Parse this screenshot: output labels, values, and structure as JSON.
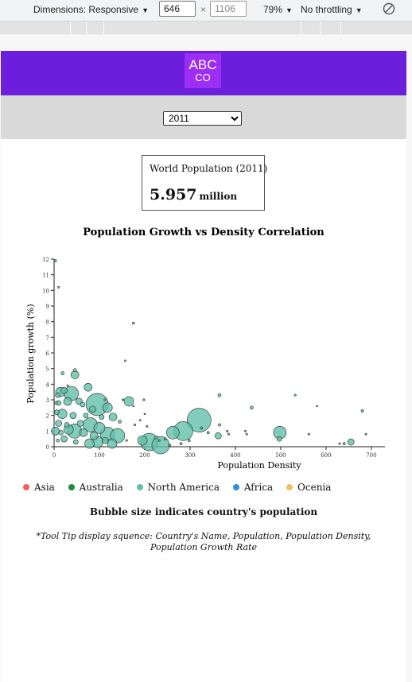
{
  "devtools": {
    "dimensions_label": "Dimensions: Responsive",
    "width_value": "646",
    "height_value": "1106",
    "times": "×",
    "zoom": "79%",
    "throttling": "No throttling",
    "caret": "▼"
  },
  "header": {
    "logo_top": "ABC",
    "logo_bottom": "CO"
  },
  "year_select": {
    "selected": "2011"
  },
  "population_box": {
    "label": "World Population (2011)",
    "value": "5.957",
    "unit": "million"
  },
  "chart_data": {
    "type": "scatter",
    "title": "Population Growth vs Density Correlation",
    "xlabel": "Population Density",
    "ylabel": "Population growth (%)",
    "xlim": [
      0,
      730
    ],
    "ylim": [
      0,
      12
    ],
    "x_ticks": [
      0,
      100,
      200,
      300,
      400,
      500,
      600,
      700
    ],
    "y_ticks": [
      0,
      1,
      2,
      3,
      4,
      5,
      6,
      7,
      8,
      9,
      10,
      11,
      12
    ],
    "grid": false,
    "legend_position": "bottom-left",
    "colors": {
      "Asia": "#f06262",
      "Australia": "#1f8b3c",
      "North America": "#62bfa9",
      "Africa": "#2a8fe0",
      "Ocenia": "#f2c063"
    },
    "points": [
      {
        "x": 3,
        "y": 11.9,
        "r": 1.4
      },
      {
        "x": 10,
        "y": 10.2,
        "r": 1.2
      },
      {
        "x": 175,
        "y": 7.9,
        "r": 1.4
      },
      {
        "x": 157,
        "y": 5.5,
        "r": 1.0
      },
      {
        "x": 46,
        "y": 4.9,
        "r": 2.0
      },
      {
        "x": 46,
        "y": 4.6,
        "r": 5.0
      },
      {
        "x": 19,
        "y": 4.7,
        "r": 2.0
      },
      {
        "x": 30,
        "y": 3.9,
        "r": 1.2
      },
      {
        "x": 22,
        "y": 3.6,
        "r": 4.0
      },
      {
        "x": 14,
        "y": 3.5,
        "r": 6.0
      },
      {
        "x": 8,
        "y": 3.3,
        "r": 3.0
      },
      {
        "x": 38,
        "y": 3.4,
        "r": 9.0
      },
      {
        "x": 75,
        "y": 3.8,
        "r": 5.0
      },
      {
        "x": 4,
        "y": 2.8,
        "r": 2.0
      },
      {
        "x": 10,
        "y": 2.8,
        "r": 3.0
      },
      {
        "x": 30,
        "y": 2.9,
        "r": 5.0
      },
      {
        "x": 55,
        "y": 2.9,
        "r": 4.0
      },
      {
        "x": 63,
        "y": 2.7,
        "r": 3.0
      },
      {
        "x": 95,
        "y": 2.7,
        "r": 14.0
      },
      {
        "x": 118,
        "y": 2.5,
        "r": 6.0
      },
      {
        "x": 85,
        "y": 2.4,
        "r": 4.0
      },
      {
        "x": 6,
        "y": 2.2,
        "r": 3.0
      },
      {
        "x": 18,
        "y": 2.1,
        "r": 6.0
      },
      {
        "x": 42,
        "y": 2.0,
        "r": 4.0
      },
      {
        "x": 70,
        "y": 2.0,
        "r": 3.0
      },
      {
        "x": 105,
        "y": 1.9,
        "r": 3.0
      },
      {
        "x": 130,
        "y": 1.9,
        "r": 5.0
      },
      {
        "x": 165,
        "y": 2.9,
        "r": 6.0
      },
      {
        "x": 152,
        "y": 3.0,
        "r": 1.2
      },
      {
        "x": 198,
        "y": 3.0,
        "r": 1.2
      },
      {
        "x": 175,
        "y": 2.6,
        "r": 1.0
      },
      {
        "x": 200,
        "y": 2.1,
        "r": 1.0
      },
      {
        "x": 190,
        "y": 1.7,
        "r": 1.0
      },
      {
        "x": 145,
        "y": 1.6,
        "r": 2.0
      },
      {
        "x": 10,
        "y": 1.5,
        "r": 4.0
      },
      {
        "x": 28,
        "y": 1.4,
        "r": 3.0
      },
      {
        "x": 58,
        "y": 1.5,
        "r": 4.0
      },
      {
        "x": 80,
        "y": 1.4,
        "r": 9.0
      },
      {
        "x": 100,
        "y": 1.2,
        "r": 7.0
      },
      {
        "x": 3,
        "y": 1.0,
        "r": 5.0
      },
      {
        "x": 15,
        "y": 0.9,
        "r": 3.0
      },
      {
        "x": 32,
        "y": 1.1,
        "r": 6.0
      },
      {
        "x": 45,
        "y": 1.0,
        "r": 9.0
      },
      {
        "x": 65,
        "y": 0.9,
        "r": 5.0
      },
      {
        "x": 88,
        "y": 0.7,
        "r": 5.0
      },
      {
        "x": 118,
        "y": 0.8,
        "r": 9.0
      },
      {
        "x": 140,
        "y": 0.7,
        "r": 9.0
      },
      {
        "x": 8,
        "y": 0.4,
        "r": 2.0
      },
      {
        "x": 22,
        "y": 0.5,
        "r": 4.0
      },
      {
        "x": 48,
        "y": 0.3,
        "r": 3.0
      },
      {
        "x": 78,
        "y": 0.2,
        "r": 6.0
      },
      {
        "x": 96,
        "y": 0.3,
        "r": 7.0
      },
      {
        "x": 113,
        "y": 0.4,
        "r": 4.0
      },
      {
        "x": 128,
        "y": 0.2,
        "r": 6.0
      },
      {
        "x": 195,
        "y": 0.4,
        "r": 6.0
      },
      {
        "x": 210,
        "y": 0.3,
        "r": 11.0
      },
      {
        "x": 235,
        "y": 0.1,
        "r": 11.0
      },
      {
        "x": 225,
        "y": 0.6,
        "r": 2.0
      },
      {
        "x": 245,
        "y": 0.5,
        "r": 1.5
      },
      {
        "x": 262,
        "y": 0.9,
        "r": 8.0
      },
      {
        "x": 285,
        "y": 1.0,
        "r": 12.0
      },
      {
        "x": 320,
        "y": 1.7,
        "r": 15.0
      },
      {
        "x": 298,
        "y": 0.4,
        "r": 1.5
      },
      {
        "x": 280,
        "y": 0.2,
        "r": 1.5
      },
      {
        "x": 255,
        "y": 0.1,
        "r": 1.5
      },
      {
        "x": 325,
        "y": 1.2,
        "r": 1.5
      },
      {
        "x": 340,
        "y": 0.9,
        "r": 1.5
      },
      {
        "x": 362,
        "y": 0.7,
        "r": 4.0
      },
      {
        "x": 365,
        "y": 1.4,
        "r": 1.5
      },
      {
        "x": 382,
        "y": 1.0,
        "r": 1.2
      },
      {
        "x": 385,
        "y": 0.8,
        "r": 1.2
      },
      {
        "x": 365,
        "y": 3.3,
        "r": 2.0
      },
      {
        "x": 436,
        "y": 2.5,
        "r": 2.0
      },
      {
        "x": 422,
        "y": 1.0,
        "r": 1.2
      },
      {
        "x": 425,
        "y": 0.8,
        "r": 1.2
      },
      {
        "x": 498,
        "y": 0.9,
        "r": 8.0
      },
      {
        "x": 497,
        "y": 0.5,
        "r": 3.0
      },
      {
        "x": 532,
        "y": 3.3,
        "r": 1.2
      },
      {
        "x": 580,
        "y": 2.6,
        "r": 1.0
      },
      {
        "x": 562,
        "y": 0.8,
        "r": 1.2
      },
      {
        "x": 630,
        "y": 0.2,
        "r": 1.2
      },
      {
        "x": 640,
        "y": 0.2,
        "r": 1.5
      },
      {
        "x": 655,
        "y": 0.3,
        "r": 4.0
      },
      {
        "x": 680,
        "y": 2.3,
        "r": 1.5
      },
      {
        "x": 688,
        "y": 0.8,
        "r": 1.2
      },
      {
        "x": 232,
        "y": 0.4,
        "r": 1.2
      },
      {
        "x": 160,
        "y": 0.4,
        "r": 1.2
      },
      {
        "x": 178,
        "y": 1.4,
        "r": 1.2
      },
      {
        "x": 112,
        "y": 3.0,
        "r": 1.2
      },
      {
        "x": 205,
        "y": 1.3,
        "r": 1.2
      }
    ]
  },
  "legend": {
    "items": [
      {
        "label": "Asia",
        "color": "#f06262"
      },
      {
        "label": "Australia",
        "color": "#1f8b3c"
      },
      {
        "label": "North America",
        "color": "#62bfa9"
      },
      {
        "label": "Africa",
        "color": "#2a8fe0"
      },
      {
        "label": "Ocenia",
        "color": "#f2c063"
      }
    ]
  },
  "notes": {
    "bubble_size": "Bubble size indicates country's population",
    "tooltip": "*Tool Tip display squence: Country's Name, Population, Population Density, Population Growth Rate"
  }
}
